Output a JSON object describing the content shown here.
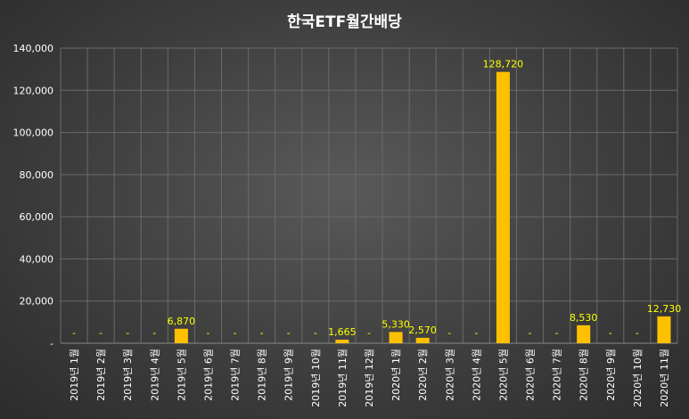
{
  "chart_data": {
    "type": "bar",
    "title": "한국ETF월간배당",
    "categories": [
      "2019년 1월",
      "2019년 2월",
      "2019년 3월",
      "2019년 4월",
      "2019년 5월",
      "2019년 6월",
      "2019년 7월",
      "2019년 8월",
      "2019년 9월",
      "2019년 10월",
      "2019년 11월",
      "2019년 12월",
      "2020년 1월",
      "2020년 2월",
      "2020년 3월",
      "2020년 4월",
      "2020년 5월",
      "2020년 6월",
      "2020년 7월",
      "2020년 8월",
      "2020년 9월",
      "2020년 10월",
      "2020년 11월"
    ],
    "values": [
      0,
      0,
      0,
      0,
      6870,
      0,
      0,
      0,
      0,
      0,
      1665,
      0,
      5330,
      2570,
      0,
      0,
      128720,
      0,
      0,
      8530,
      0,
      0,
      12730
    ],
    "data_labels": [
      "-",
      "-",
      "-",
      "-",
      "6,870",
      "-",
      "-",
      "-",
      "-",
      "-",
      "1,665",
      "-",
      "5,330",
      "2,570",
      "-",
      "-",
      "128,720",
      "-",
      "-",
      "8,530",
      "-",
      "-",
      "12,730"
    ],
    "yticks": [
      "-",
      "20,000",
      "40,000",
      "60,000",
      "80,000",
      "100,000",
      "120,000",
      "140,000"
    ],
    "ylim": [
      0,
      140000
    ],
    "grid": true,
    "legend": "none",
    "colors": {
      "bar": "#ffc000",
      "label": "#ffff00",
      "grid": "#6a6a6a",
      "axis": "#8a8a8a",
      "text": "#ffffff"
    }
  }
}
